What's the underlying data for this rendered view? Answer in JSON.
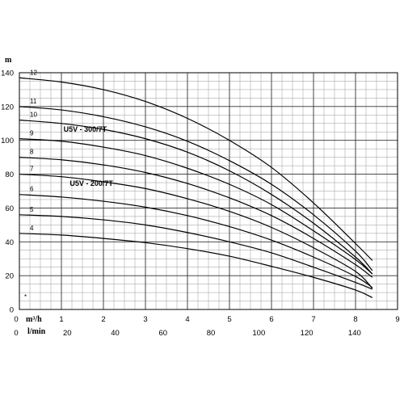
{
  "chart_data": {
    "type": "line",
    "ylabel": "m",
    "xlabel_primary": "m³/h",
    "xlabel_secondary": "l/min",
    "xlim": [
      0,
      9
    ],
    "ylim": [
      0,
      140
    ],
    "xlim_secondary": [
      0,
      150
    ],
    "x_ticks": [
      "0",
      "1",
      "2",
      "3",
      "4",
      "5",
      "6",
      "7",
      "8",
      "9"
    ],
    "x_ticks_values": [
      0,
      1,
      2,
      3,
      4,
      5,
      6,
      7,
      8,
      9
    ],
    "x2_ticks": [
      "0",
      "20",
      "40",
      "60",
      "80",
      "100",
      "120",
      "140"
    ],
    "x2_ticks_values": [
      0,
      20,
      40,
      60,
      80,
      100,
      120,
      140
    ],
    "y_ticks": [
      "0",
      "20",
      "40",
      "60",
      "80",
      "100",
      "120",
      "140"
    ],
    "y_ticks_values": [
      0,
      20,
      40,
      60,
      80,
      100,
      120,
      140
    ],
    "grid": true,
    "x_common": [
      0,
      1,
      2,
      3,
      4,
      5,
      6,
      7,
      8,
      8.4
    ],
    "series": [
      {
        "name": "4",
        "values": [
          45,
          44,
          42,
          39.5,
          36,
          31.5,
          25.5,
          19,
          11.5,
          7
        ]
      },
      {
        "name": "5",
        "values": [
          56,
          55,
          53,
          50,
          45.5,
          40,
          33.5,
          25,
          16,
          12
        ]
      },
      {
        "name": "6",
        "values": [
          68,
          66.5,
          64,
          60.5,
          55.5,
          49,
          41,
          31,
          19.5,
          13
        ]
      },
      {
        "name": "7",
        "values": [
          80,
          78.5,
          75.5,
          71.5,
          65.5,
          58,
          48.5,
          36.5,
          22.5,
          12.5
        ]
      },
      {
        "name": "8",
        "values": [
          90,
          88.5,
          85.5,
          81,
          74.5,
          66,
          55.5,
          42,
          26.5,
          19
        ]
      },
      {
        "name": "9",
        "values": [
          101,
          99.5,
          96,
          91,
          83.5,
          74,
          62,
          46.5,
          29.5,
          21
        ]
      },
      {
        "name": "10",
        "values": [
          112,
          110,
          106.5,
          101,
          93,
          82,
          68,
          51,
          31,
          21
        ]
      },
      {
        "name": "11",
        "values": [
          120,
          118,
          114,
          108,
          99.5,
          88,
          74,
          56,
          34.5,
          23
        ]
      },
      {
        "name": "12",
        "values": [
          137,
          134.5,
          130,
          123,
          113,
          100,
          84,
          63,
          39,
          29
        ]
      }
    ],
    "series_annotations": [
      {
        "text": "U5V - 300/7T",
        "x": 1.05,
        "y": 106.5
      },
      {
        "text": "U5V - 200/7T",
        "x": 1.2,
        "y": 74.5
      }
    ]
  }
}
